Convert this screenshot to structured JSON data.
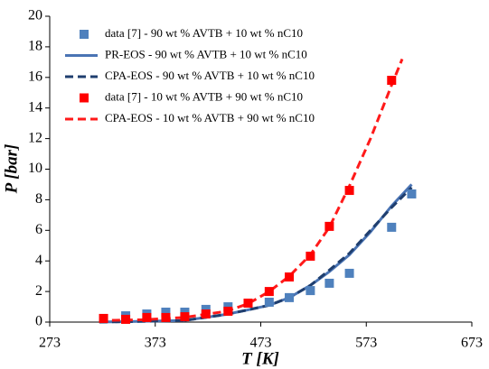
{
  "chart_data": {
    "type": "scatter",
    "x_label": "T [K]",
    "y_label": "P [bar]",
    "xlim": [
      273,
      673
    ],
    "xticks": [
      273,
      373,
      473,
      573,
      673
    ],
    "ylim": [
      0,
      20
    ],
    "yticks": [
      0,
      2,
      4,
      6,
      8,
      10,
      12,
      14,
      16,
      18,
      20
    ],
    "series": [
      {
        "name": "data [7] - 90 wt % AVTB + 10 wt % nC10",
        "color": "#4f81bd",
        "style": "markers",
        "x": [
          345,
          365,
          383,
          401,
          421,
          442,
          481,
          500,
          520,
          538,
          557,
          597,
          616
        ],
        "values": [
          0.41,
          0.53,
          0.65,
          0.65,
          0.83,
          1.0,
          1.3,
          1.6,
          2.06,
          2.54,
          3.19,
          6.2,
          8.38
        ]
      },
      {
        "name": "PR-EOS  - 90 wt % AVTB + 10 wt % nC10",
        "color": "#4a74b4",
        "style": "solid",
        "x": [
          320,
          400,
          440,
          461,
          481,
          500,
          520,
          538,
          557,
          577,
          597,
          616
        ],
        "values": [
          0,
          0.1,
          0.5,
          0.8,
          1.1,
          1.6,
          2.4,
          3.3,
          4.4,
          5.9,
          7.6,
          9.0
        ]
      },
      {
        "name": "CPA-EOS - 90 wt % AVTB + 10 wt % nC10",
        "color": "#1f3e6e",
        "style": "dashed",
        "x": [
          320,
          400,
          440,
          461,
          481,
          500,
          520,
          538,
          557,
          577,
          597,
          616
        ],
        "values": [
          0,
          0.1,
          0.5,
          0.8,
          1.1,
          1.6,
          2.4,
          3.4,
          4.5,
          6.0,
          7.5,
          8.8
        ]
      },
      {
        "name": "data [7] - 10 wt % AVTB + 90 wt % nC10",
        "color": "#ff0000",
        "style": "markers",
        "x": [
          324,
          345,
          365,
          383,
          401,
          421,
          442,
          461,
          481,
          500,
          520,
          538,
          557,
          597
        ],
        "values": [
          0.24,
          0.18,
          0.3,
          0.3,
          0.35,
          0.53,
          0.71,
          1.24,
          2.0,
          2.95,
          4.31,
          6.26,
          8.61,
          15.81
        ]
      },
      {
        "name": "CPA-EOS  - 10 wt % AVTB + 90 wt % nC10",
        "color": "#ff1a1a",
        "style": "dashed",
        "x": [
          320,
          360,
          400,
          440,
          461,
          481,
          500,
          520,
          538,
          557,
          577,
          597,
          607
        ],
        "values": [
          0.1,
          0.15,
          0.3,
          0.7,
          1.2,
          2.0,
          3.0,
          4.4,
          6.2,
          8.9,
          12.0,
          15.5,
          17.2
        ]
      }
    ]
  }
}
